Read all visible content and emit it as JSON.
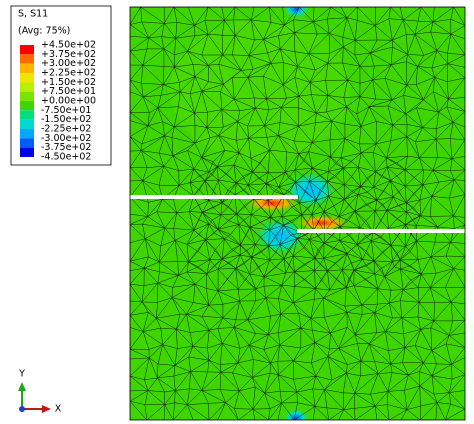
{
  "legend": {
    "title": "S, S11",
    "subtitle": "(Avg: 75%)",
    "labels": [
      "+4.50e+02",
      "+3.75e+02",
      "+3.00e+02",
      "+2.25e+02",
      "+1.50e+02",
      "+7.50e+01",
      "+0.00e+00",
      "-7.50e+01",
      "-1.50e+02",
      "-2.25e+02",
      "-3.00e+02",
      "-3.75e+02",
      "-4.50e+02"
    ],
    "colors": [
      "#ff0000",
      "#ff6a00",
      "#ffb300",
      "#f0e400",
      "#b8f000",
      "#7ce300",
      "#3fd600",
      "#00e07a",
      "#00d9cf",
      "#00a8ff",
      "#005cff",
      "#0000e8"
    ]
  },
  "triad": {
    "y": "Y",
    "x": "X"
  }
}
